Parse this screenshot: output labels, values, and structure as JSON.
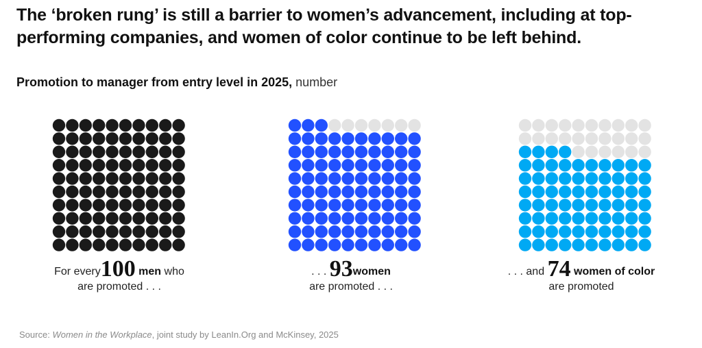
{
  "title": "The ‘broken rung’ is still a barrier to women’s advancement, including at top-performing companies, and women of color continue to be left behind.",
  "subtitle": {
    "bold": "Promotion to manager from entry level in 2025,",
    "unit": "number"
  },
  "chart_data": [
    {
      "type": "waffle",
      "name": "men",
      "value": 100,
      "total": 100,
      "grid": [
        10,
        10
      ],
      "color": "#1a1a1a",
      "empty_color": "#e3e3e3",
      "caption": {
        "pre": "For every",
        "number": "100",
        "bold": "men",
        "post": "who",
        "line2": "are promoted . . ."
      }
    },
    {
      "type": "waffle",
      "name": "women",
      "value": 93,
      "total": 100,
      "grid": [
        10,
        10
      ],
      "color": "#2251ff",
      "empty_color": "#e3e3e3",
      "caption": {
        "pre": ". . .",
        "number": "93",
        "bold": "women",
        "post": "",
        "line2": "are promoted . . ."
      }
    },
    {
      "type": "waffle",
      "name": "women-of-color",
      "value": 74,
      "total": 100,
      "grid": [
        10,
        10
      ],
      "color": "#00a9f4",
      "empty_color": "#e3e3e3",
      "caption": {
        "pre": ". . . and",
        "number": "74",
        "bold": "women of color",
        "post": "",
        "line2": "are promoted"
      }
    }
  ],
  "source": {
    "prefix": "Source:",
    "italic": "Women in the Workplace",
    "rest": ", joint study by LeanIn.Org and McKinsey, 2025"
  }
}
